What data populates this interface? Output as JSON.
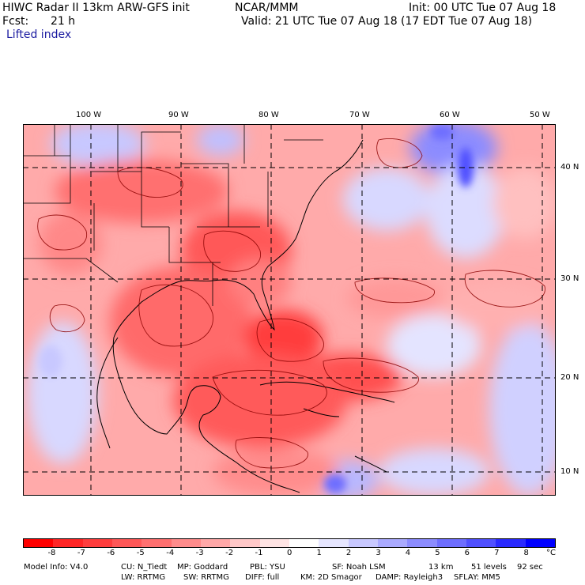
{
  "header": {
    "model_title": "HIWC Radar II 13km ARW-GFS init",
    "org": "NCAR/MMM",
    "init": "Init: 00 UTC Tue 07 Aug 18",
    "fcst_label": "Fcst:",
    "fcst_value": "21 h",
    "valid": "Valid: 21 UTC Tue 07 Aug 18 (17 EDT Tue 07 Aug 18)",
    "field": "Lifted index"
  },
  "map": {
    "lon_labels": [
      "100 W",
      "90 W",
      "80 W",
      "70 W",
      "60 W",
      "50 W"
    ],
    "lat_labels": [
      "40 N",
      "30 N",
      "20 N",
      "10 N"
    ]
  },
  "colorbar": {
    "unit": "°C",
    "ticks": [
      "-8",
      "-7",
      "-6",
      "-5",
      "-4",
      "-3",
      "-2",
      "-1",
      "0",
      "1",
      "2",
      "3",
      "4",
      "5",
      "6",
      "7",
      "8"
    ],
    "colors": [
      "#ff0000",
      "#ff2626",
      "#ff3e3e",
      "#ff5858",
      "#ff7070",
      "#ff8c8c",
      "#ffa8a8",
      "#ffc8c8",
      "#ffe4e4",
      "#ffffff",
      "#e6e6ff",
      "#c8c8ff",
      "#aaaaff",
      "#8c8cff",
      "#6e6eff",
      "#5050ff",
      "#2a2aff",
      "#0000ff"
    ]
  },
  "footer": {
    "line1": {
      "model_info": "Model Info: V4.0",
      "cu": "CU: N_Tiedt",
      "mp": "MP: Goddard",
      "pbl": "PBL: YSU",
      "sf": "SF: Noah LSM",
      "res": "13 km",
      "levels": "51 levels",
      "dt": "92 sec"
    },
    "line2": {
      "lw": "LW: RRTMG",
      "sw": "SW: RRTMG",
      "diff": "DIFF: full",
      "km": "KM: 2D Smagor",
      "damp": "DAMP: Rayleigh3",
      "sflay": "SFLAY: MM5"
    }
  }
}
